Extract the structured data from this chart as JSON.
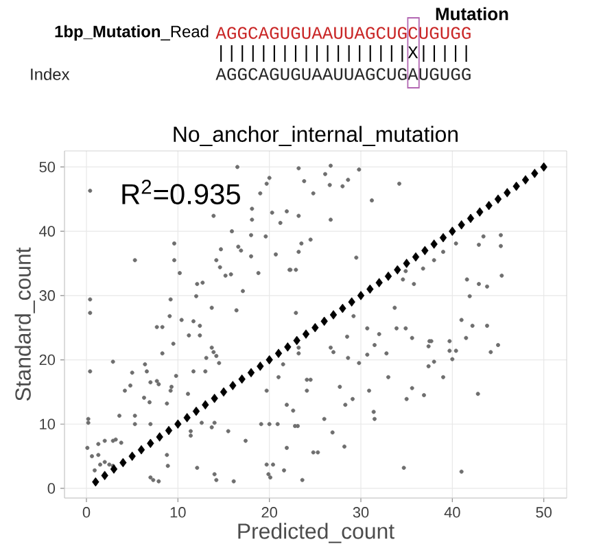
{
  "chart_data": {
    "type": "scatter",
    "title": "No_anchor_internal_mutation",
    "xlabel": "Predicted_count",
    "ylabel": "Standard_count",
    "annotations": [
      "R$^{2}$=0.935",
      "Mutation",
      "**1bp_Mutation**_Read",
      "AGGCAGUGUAAUUAGCUGCUGUGG",
      "||||||||||||||||||X|||||",
      "Index",
      "AGGCAGUGUAAUUAGCUGAUGUGG"
    ],
    "xlim": [
      -2.4,
      52.5
    ],
    "ylim": [
      -1.5,
      52.5
    ],
    "xticks": [
      0,
      10,
      20,
      30,
      40,
      50
    ],
    "yticks": [
      0,
      10,
      20,
      30,
      40,
      50
    ],
    "grid": true,
    "series": [
      {
        "color": "#6e6e6e",
        "marker": "circle",
        "x": [
          16.5,
          23.2,
          0.4,
          20,
          19.7,
          23.8,
          24.8,
          19,
          18.1,
          13.9,
          20.3,
          21.9,
          23.2,
          21.2,
          18.1,
          15.9,
          18,
          19.6,
          9.6,
          24.5,
          5.3,
          9.6,
          14.7,
          16.6,
          16.9,
          20.7,
          18,
          23.2,
          14.2,
          14.6,
          22.3,
          10.2,
          18.8,
          15.8,
          12.1,
          12.7,
          15.2,
          17.1,
          0.4,
          0.4,
          9.2,
          12,
          13.7,
          16.4,
          22.9,
          9.1,
          10.4,
          11.7,
          12.4,
          7.7,
          8.3,
          11.2,
          12.4,
          26.7,
          26.1,
          29.8,
          26.6,
          28,
          28.6,
          34.2,
          31.2,
          26.7,
          23.5,
          29.5,
          22.2,
          22.9,
          40.4,
          39,
          42.9,
          43.4,
          45.3,
          45.3,
          38,
          36.8,
          34.9,
          45.4,
          35.8,
          34.6,
          41.6,
          42.9,
          43.8,
          41.9,
          33.7,
          29.2,
          41,
          42.2,
          43.8,
          30.7,
          32,
          33.9,
          34.9,
          28.5,
          35.6,
          37.5,
          39.7,
          41.5,
          9.5,
          8.3,
          13.7,
          13.9,
          14.2,
          13.1,
          11.7,
          13,
          14.5,
          2.9,
          0.4,
          6.4,
          6.6,
          5,
          7.7,
          7.9,
          9.8,
          9.3,
          9.2,
          7,
          4.8,
          4.2,
          6.3,
          6.9,
          8.8,
          11.1,
          3.6,
          5.3,
          0.2,
          0.2,
          5.3,
          7,
          11.4,
          11.4,
          12.6,
          13.7,
          14,
          15.5,
          17.4,
          19.1,
          20,
          20.9,
          22.8,
          21.9,
          22.6,
          24.1,
          24.5,
          19.7,
          21,
          23.2,
          23.2,
          0.1,
          1.3,
          2,
          2.9,
          3.2,
          3.8,
          0.6,
          1.3,
          1.5,
          2,
          2.5,
          2.9,
          0.9,
          8.8,
          8.9,
          12.1,
          7,
          7.3,
          7.9,
          14,
          14.2,
          16.1,
          19.7,
          20.4,
          19.9,
          20.1,
          21.6,
          23.6,
          24.8,
          25.3,
          21.9,
          26.7,
          27,
          28.6,
          29.8,
          30.7,
          31.5,
          32.8,
          37.4,
          37.7,
          37.4,
          38,
          39.7,
          40.4,
          40,
          44.2,
          45,
          21.5,
          24.1,
          27.7,
          30.9,
          29.1,
          28.3,
          33,
          35,
          35.6,
          36.9,
          39,
          42.8,
          23.1,
          26,
          31.4,
          31.5,
          26.9,
          28.2,
          34.7,
          41
        ],
        "values": [
          50,
          49.8,
          46.3,
          48.3,
          47.4,
          47.8,
          45.9,
          45.9,
          43.5,
          42.4,
          42.9,
          43.1,
          42.4,
          41.3,
          41.8,
          40,
          39.4,
          39.2,
          38.1,
          38.7,
          35.5,
          35.5,
          37.2,
          37.6,
          37,
          36.4,
          36.1,
          36.8,
          35.5,
          34.4,
          34,
          33.5,
          33.5,
          33.3,
          31.8,
          32,
          33.1,
          30.7,
          29.4,
          27.3,
          29.4,
          29.9,
          28.1,
          27.7,
          27.3,
          26.8,
          26.2,
          26,
          25.3,
          25.1,
          25.1,
          23.8,
          23.8,
          50.2,
          48.9,
          49.6,
          47.2,
          47,
          48,
          47.4,
          44.8,
          41.8,
          38.1,
          35.9,
          34,
          34,
          38.1,
          36.8,
          37.9,
          39.2,
          37.7,
          39.4,
          35.5,
          34.2,
          33.8,
          33.1,
          31.8,
          32.5,
          32.5,
          31.8,
          31.4,
          29.9,
          28.1,
          26.8,
          26.2,
          25.3,
          25.3,
          24.9,
          24,
          24.9,
          24.9,
          23.6,
          23.4,
          22.9,
          22.9,
          23.4,
          22.5,
          21,
          21.9,
          21.2,
          20.6,
          20.3,
          18.2,
          18.2,
          19.5,
          19.7,
          18.2,
          19.3,
          18.2,
          18,
          16.7,
          16.2,
          17.5,
          15.8,
          15.2,
          16.5,
          16,
          15.2,
          14.1,
          13.4,
          13.2,
          14.7,
          11.3,
          11.3,
          10.8,
          10.2,
          10,
          10,
          8.9,
          8.2,
          10.2,
          9.5,
          10.2,
          8.9,
          7.4,
          10,
          10,
          10,
          9.7,
          13,
          12.1,
          16.9,
          16.9,
          15.2,
          17.3,
          21.9,
          21,
          6.3,
          6.9,
          7.4,
          7.4,
          7.6,
          7.1,
          5,
          5.2,
          3.7,
          4.1,
          3.7,
          3.5,
          2.8,
          5.2,
          3.5,
          3.2,
          1.7,
          1.3,
          1.1,
          2.2,
          1.3,
          1.1,
          3.7,
          3.7,
          2.2,
          1.7,
          2.8,
          1.3,
          5.6,
          5.6,
          6.3,
          21.9,
          21.2,
          20.3,
          19.5,
          20.8,
          22.3,
          21,
          22.1,
          22.9,
          19,
          19.7,
          21.4,
          21.4,
          20.1,
          21.2,
          22.3,
          19.3,
          15.2,
          15.8,
          15.2,
          13.9,
          13,
          17.3,
          13.9,
          15.6,
          14.5,
          17.3,
          14.7,
          9.7,
          10.8,
          11.9,
          10.8,
          8.7,
          6.5,
          3.2,
          2.6
        ]
      },
      {
        "color": "#000000",
        "marker": "diamond",
        "x": [
          1,
          2,
          3,
          4,
          5,
          6,
          7,
          8,
          9,
          10,
          11,
          12,
          13,
          14,
          15,
          16,
          17,
          18,
          19,
          20,
          21,
          22,
          23,
          24,
          25,
          26,
          27,
          28,
          29,
          30,
          31,
          32,
          33,
          34,
          35,
          36,
          37,
          38,
          39,
          40,
          41,
          42,
          43,
          44,
          45,
          46,
          47,
          48,
          49,
          50
        ],
        "values": [
          1,
          2,
          3,
          4,
          5,
          6,
          7,
          8,
          9,
          10,
          11,
          12,
          13,
          14,
          15,
          16,
          17,
          18,
          19,
          20,
          21,
          22,
          23,
          24,
          25,
          26,
          27,
          28,
          29,
          30,
          31,
          32,
          33,
          34,
          35,
          36,
          37,
          38,
          39,
          40,
          41,
          42,
          43,
          44,
          45,
          46,
          47,
          48,
          49,
          50
        ]
      }
    ]
  }
}
